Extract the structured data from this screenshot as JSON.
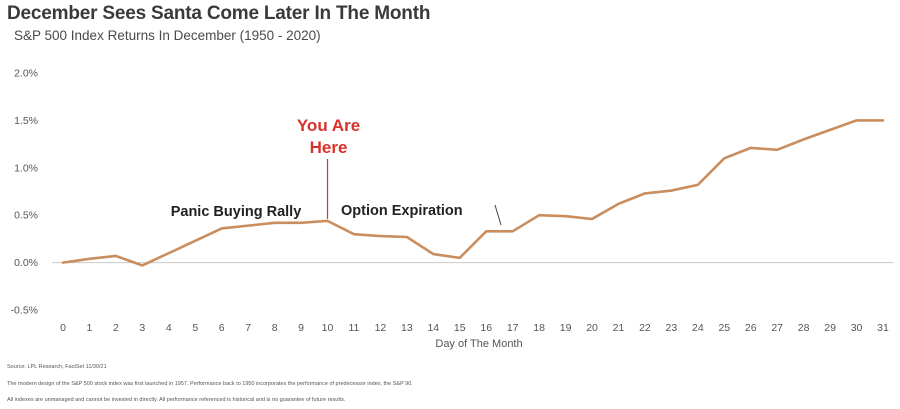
{
  "chart_data": {
    "type": "line",
    "title": "December Sees Santa Come Later In The Month",
    "subtitle": "S&P 500 Index Returns In December (1950 - 2020)",
    "xlabel": "Day of The Month",
    "ylabel": "",
    "x": [
      0,
      1,
      2,
      3,
      4,
      5,
      6,
      7,
      8,
      9,
      10,
      11,
      12,
      13,
      14,
      15,
      16,
      17,
      18,
      19,
      20,
      21,
      22,
      23,
      24,
      25,
      26,
      27,
      28,
      29,
      30,
      31
    ],
    "series": [
      {
        "values": [
          0.0,
          0.04,
          0.07,
          -0.03,
          0.1,
          0.23,
          0.36,
          0.39,
          0.42,
          0.42,
          0.44,
          0.3,
          0.28,
          0.27,
          0.09,
          0.05,
          0.33,
          0.33,
          0.5,
          0.49,
          0.46,
          0.62,
          0.73,
          0.76,
          0.82,
          1.1,
          1.21,
          1.19,
          1.3,
          1.4,
          1.5,
          1.5
        ],
        "color": "#c98d5e"
      }
    ],
    "ylim": [
      -0.5,
      2.0
    ],
    "xlim": [
      0,
      31
    ],
    "yticks": [
      2.0,
      1.5,
      1.0,
      0.5,
      0.0,
      -0.5
    ],
    "ytick_labels": [
      "2.0%",
      "1.5%",
      "1.0%",
      "0.5%",
      "0.0%",
      "-0.5%"
    ],
    "xtick_labels": [
      "0",
      "1",
      "2",
      "3",
      "4",
      "5",
      "6",
      "7",
      "8",
      "9",
      "10",
      "11",
      "12",
      "13",
      "14",
      "15",
      "16",
      "17",
      "18",
      "19",
      "20",
      "21",
      "22",
      "23",
      "24",
      "25",
      "26",
      "27",
      "28",
      "29",
      "30",
      "31"
    ],
    "grid": false,
    "zero_line": true,
    "annotations": [
      {
        "text": "Panic Buying Rally",
        "x": 7.5,
        "y": 0.5,
        "style": "black"
      },
      {
        "text": "Option Expiration",
        "x": 16,
        "y": 0.5,
        "style": "black"
      },
      {
        "text_lines": [
          "You Are",
          "Here"
        ],
        "x": 10,
        "y": 1.45,
        "style": "red"
      }
    ]
  },
  "footnotes": [
    "Source: LPL Research, FactSet 11/30/21",
    "The modern design of the S&P 500 stock index was first launched in 1957. Performance back to 1950 incorporates the performance of predecessor index, the S&P 90.",
    "All indexes are unmanaged and cannot be invested in directly. All performance referenced is historical and is no guarantee of future results."
  ]
}
